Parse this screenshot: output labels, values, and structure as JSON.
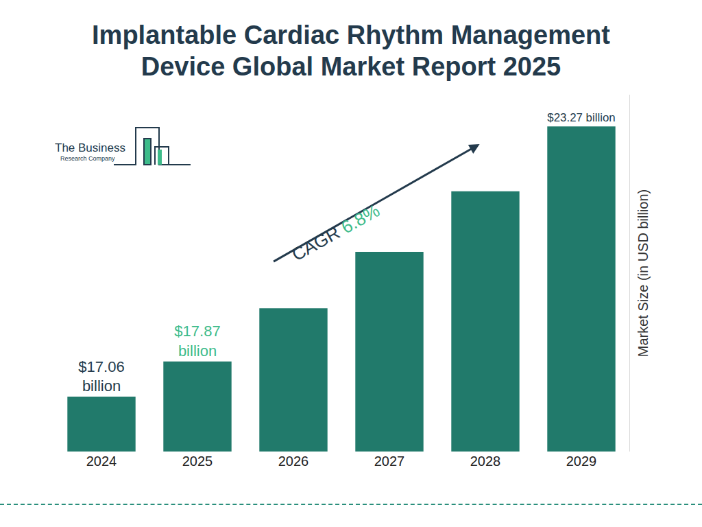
{
  "chart_data": {
    "type": "bar",
    "title": "Implantable Cardiac Rhythm Management Device Global Market Report 2025",
    "categories": [
      "2024",
      "2025",
      "2026",
      "2027",
      "2028",
      "2029"
    ],
    "values": [
      17.06,
      17.87,
      19.09,
      20.39,
      21.78,
      23.27
    ],
    "value_labels": [
      "$17.06 billion",
      "$17.87 billion",
      null,
      null,
      null,
      "$23.27 billion"
    ],
    "data_labels": true,
    "color": "#217a6b",
    "ylim": [
      15.8,
      24
    ],
    "tick_labels": "x",
    "grid": false,
    "y_label": "Market Size (in USD billion)",
    "annotations": [
      "CAGR 6.8%"
    ]
  },
  "logo": [
    "The Business",
    "Research Company"
  ]
}
